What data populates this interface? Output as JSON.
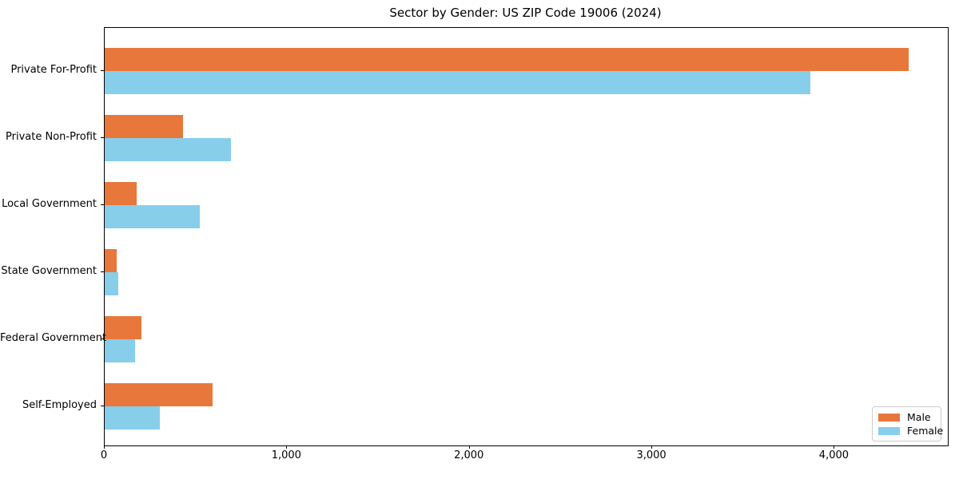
{
  "title": "Sector by Gender: US ZIP Code 19006 (2024)",
  "chart_data": {
    "type": "bar",
    "orientation": "horizontal",
    "title": "Sector by Gender: US ZIP Code 19006 (2024)",
    "categories": [
      "Private For-Profit",
      "Private Non-Profit",
      "Local Government",
      "State Government",
      "Federal Government",
      "Self-Employed"
    ],
    "series": [
      {
        "name": "Male",
        "color": "#e8773b",
        "values": [
          4405,
          430,
          175,
          65,
          200,
          590
        ]
      },
      {
        "name": "Female",
        "color": "#87ceeb",
        "values": [
          3865,
          690,
          520,
          75,
          165,
          300
        ]
      }
    ],
    "xlabel": "",
    "ylabel": "",
    "xlim": [
      0,
      4620
    ],
    "x_ticks": [
      0,
      1000,
      2000,
      3000,
      4000
    ],
    "x_tick_labels": [
      "0",
      "1,000",
      "2,000",
      "3,000",
      "4,000"
    ],
    "legend_position": "lower right",
    "grid": false,
    "category_axis": "left"
  }
}
